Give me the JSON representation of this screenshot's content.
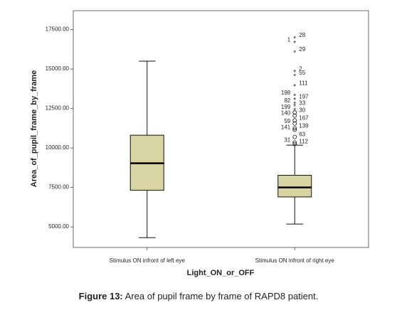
{
  "chart_data": {
    "type": "box",
    "y_label": "Area_of_pupil_frame_by_frame",
    "x_label": "Light_ON_or_OFF",
    "caption_label": "Figure 13:",
    "caption": "Area of pupil frame by frame of RAPD8 patient.",
    "categories": [
      "Stimulus ON infront of left eye",
      "Stimulus ON infront of right eye"
    ],
    "color": "#d8d5a2",
    "ylim": [
      3700,
      18700
    ],
    "yticks": [
      {
        "value": 5000,
        "label": "5000.00"
      },
      {
        "value": 7500,
        "label": "7500.00"
      },
      {
        "value": 10000,
        "label": "10000.00"
      },
      {
        "value": 12500,
        "label": "12500.00"
      },
      {
        "value": 15000,
        "label": "15000.00"
      },
      {
        "value": 17500,
        "label": "17500.00"
      }
    ],
    "boxes": [
      {
        "min": 4320,
        "q1": 7320,
        "median": 9030,
        "q3": 10810,
        "max": 15500,
        "outliers": []
      },
      {
        "min": 5180,
        "q1": 6900,
        "median": 7500,
        "q3": 8270,
        "max": 10180,
        "outliers": [
          {
            "case": "28",
            "value": 17000
          },
          {
            "case": "1",
            "value": 16700
          },
          {
            "case": "29",
            "value": 16100
          },
          {
            "case": "2",
            "value": 14850
          },
          {
            "case": "55",
            "value": 14600
          },
          {
            "case": "111",
            "value": 13950
          },
          {
            "case": "198",
            "value": 13350
          },
          {
            "case": "197",
            "value": 13100
          },
          {
            "case": "82",
            "value": 12850
          },
          {
            "case": "33",
            "value": 12700
          },
          {
            "case": "199",
            "value": 12450
          },
          {
            "case": "30",
            "value": 12250
          },
          {
            "case": "140",
            "value": 12050
          },
          {
            "case": "167",
            "value": 11750
          },
          {
            "case": "59",
            "value": 11550
          },
          {
            "case": "141",
            "value": 11150
          },
          {
            "case": "139",
            "value": 11250
          },
          {
            "case": "63",
            "value": 10700
          },
          {
            "case": "31",
            "value": 10350
          },
          {
            "case": "112",
            "value": 10250
          }
        ]
      }
    ]
  }
}
